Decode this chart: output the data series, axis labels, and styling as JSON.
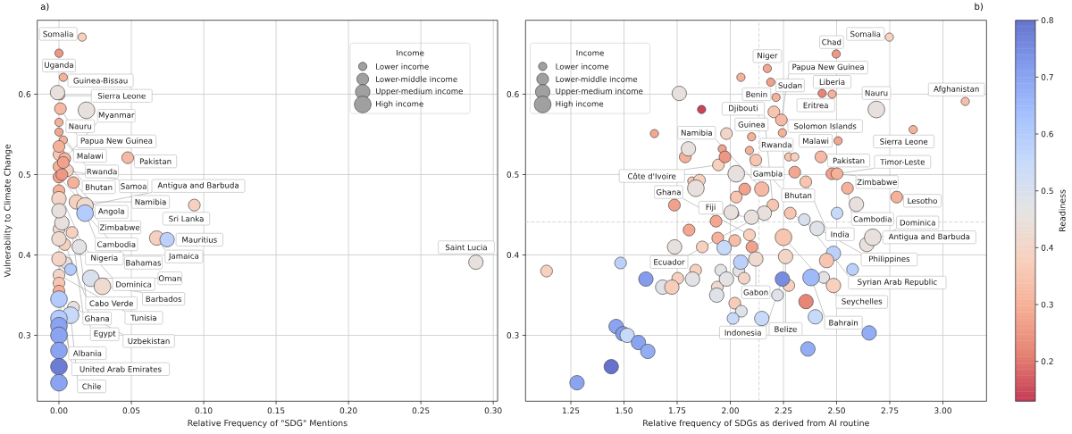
{
  "chart_data": [
    {
      "type": "bubble",
      "title": "a)",
      "xlabel": "Relative Frequency of \"SDG\" Mentions",
      "ylabel": "Vulnerability to Climate Change",
      "xlim": [
        -0.015,
        0.303
      ],
      "ylim": [
        0.218,
        0.692
      ],
      "xticks": [
        {
          "value": 0,
          "label": "0.00"
        },
        0.05,
        {
          "value": 0.1,
          "label": "0.10"
        },
        0.15,
        {
          "value": 0.2,
          "label": "0.20"
        },
        0.25,
        {
          "value": 0.3,
          "label": "0.30"
        }
      ],
      "yticks": [
        0.3,
        0.4,
        0.5,
        0.6
      ],
      "grid": true,
      "legend_title": "Income",
      "size_legend": [
        {
          "value": 1,
          "label": "Lower income"
        },
        {
          "value": 2,
          "label": "Lower-middle income"
        },
        {
          "value": 3,
          "label": "Upper-medium income"
        },
        {
          "value": 4,
          "label": "High income"
        }
      ],
      "series": [
        {
          "x": [
            0.016,
            0.0,
            0.003,
            0.001,
            0.0,
            0.003,
            0.0,
            0.001,
            0.0,
            0.004,
            0.0475,
            0.0,
            0.006,
            0.0,
            0.01,
            0.0,
            0.0935,
            0.0,
            0.009,
            0.0,
            0.01,
            0.0,
            0.003,
            0.002,
            0.004,
            0.005,
            0.008,
            0.0,
            0.0,
            0.012,
            0.002,
            0.0675,
            0.0747,
            0.014,
            0.0,
            0.288,
            -0.001,
            0.0,
            0.0,
            0.0,
            0.019,
            0.018,
            0.018,
            0.022,
            0.03,
            0.0,
            0.008,
            0.0,
            0.0,
            0.0,
            0.0,
            0.0,
            0.0
          ],
          "values": [
            0.671,
            0.651,
            0.621,
            0.598,
            0.553,
            0.543,
            0.565,
            0.582,
            0.525,
            0.52,
            0.521,
            0.51,
            0.505,
            0.497,
            0.49,
            0.48,
            0.462,
            0.432,
            0.428,
            0.375,
            0.335,
            0.535,
            0.515,
            0.5,
            0.413,
            0.39,
            0.382,
            0.365,
            0.355,
            0.466,
            0.44,
            0.421,
            0.419,
            0.41,
            0.395,
            0.391,
            0.602,
            0.47,
            0.455,
            0.42,
            0.58,
            0.461,
            0.452,
            0.371,
            0.361,
            0.345,
            0.325,
            0.321,
            0.312,
            0.3,
            0.281,
            0.261,
            0.241
          ],
          "colors": [
            "#f7d1bf",
            "#ed9784",
            "#f6b199",
            "#f6b199",
            "#f3a791",
            "#f6b199",
            "#f6b199",
            "#f7b9a3",
            "#f7c5b1",
            "#f6b199",
            "#f7b9a3",
            "#f6b199",
            "#f7d1bf",
            "#f1a18c",
            "#f6b199",
            "#f6b199",
            "#f7d1bf",
            "#efdad0",
            "#f7d1bf",
            "#f3d5c7",
            "#e8e0dd",
            "#f6b199",
            "#f1a18c",
            "#ed9784",
            "#f7d1bf",
            "#e8e0dd",
            "#b3cbfd",
            "#f7c5b1",
            "#f6b199",
            "#f7d1bf",
            "#e8e0dd",
            "#f7d1bf",
            "#bbd1fc",
            "#e3e3e5",
            "#f3d5c7",
            "#e8e0dd",
            "#e8e0dd",
            "#f3d5c7",
            "#e8e0dd",
            "#efdad0",
            "#e8e0dd",
            "#efdad0",
            "#b3cbfd",
            "#d8e0ed",
            "#efdad0",
            "#b3cbfd",
            "#c7dafa",
            "#b3cbfd",
            "#8ba4f2",
            "#8ba4f2",
            "#8ba4f2",
            "#6d7dd6",
            "#8ba4f2"
          ],
          "sizes": [
            1,
            1,
            1,
            1,
            1,
            1,
            1,
            2,
            2,
            2,
            2,
            2,
            2,
            2,
            2,
            2,
            2,
            2,
            2,
            2,
            2,
            2,
            2,
            2,
            2,
            2,
            2,
            2,
            2,
            3,
            3,
            3,
            3,
            3,
            3,
            3,
            3,
            3,
            3,
            3,
            4,
            4,
            4,
            4,
            4,
            4,
            4,
            4,
            4,
            4,
            4,
            4,
            4
          ]
        }
      ],
      "annotations": [
        {
          "text": "Somalia",
          "x": 0.016,
          "y": 0.671
        },
        {
          "text": "Uganda",
          "x": 0.0,
          "y": 0.651
        },
        {
          "text": "Guinea-Bissau",
          "x": 0.003,
          "y": 0.621
        },
        {
          "text": "Nauru",
          "x": 0.019,
          "y": 0.58
        },
        {
          "text": "Sierra Leone",
          "x": 0.001,
          "y": 0.598
        },
        {
          "text": "Papua New Guinea",
          "x": 0.001,
          "y": 0.582
        },
        {
          "text": "Malawi",
          "x": 0.0,
          "y": 0.553
        },
        {
          "text": "Rwanda",
          "x": 0.003,
          "y": 0.543
        },
        {
          "text": "Bhutan",
          "x": 0.0,
          "y": 0.525
        },
        {
          "text": "Myanmar",
          "x": 0.004,
          "y": 0.52
        },
        {
          "text": "Pakistan",
          "x": 0.0475,
          "y": 0.521
        },
        {
          "text": "Angola",
          "x": 0.0,
          "y": 0.51
        },
        {
          "text": "Samoa",
          "x": 0.006,
          "y": 0.505
        },
        {
          "text": "Zimbabwe",
          "x": 0.0,
          "y": 0.497
        },
        {
          "text": "Cambodia",
          "x": 0.01,
          "y": 0.49
        },
        {
          "text": "Nigeria",
          "x": 0.0,
          "y": 0.48
        },
        {
          "text": "Antigua and Barbuda",
          "x": 0.018,
          "y": 0.461
        },
        {
          "text": "Namibia",
          "x": 0.012,
          "y": 0.466
        },
        {
          "text": "Sri Lanka",
          "x": 0.0935,
          "y": 0.462
        },
        {
          "text": "Bahamas",
          "x": 0.018,
          "y": 0.452
        },
        {
          "text": "Dominica",
          "x": 0.002,
          "y": 0.44
        },
        {
          "text": "Cabo Verde",
          "x": 0.0,
          "y": 0.432
        },
        {
          "text": "Ghana",
          "x": 0.009,
          "y": 0.428
        },
        {
          "text": "Jamaica",
          "x": 0.0675,
          "y": 0.421
        },
        {
          "text": "Mauritius",
          "x": 0.0747,
          "y": 0.419
        },
        {
          "text": "Egypt",
          "x": 0.014,
          "y": 0.41
        },
        {
          "text": "Albania",
          "x": 0.0,
          "y": 0.395
        },
        {
          "text": "Tunisia",
          "x": 0.0,
          "y": 0.375
        },
        {
          "text": "Oman",
          "x": 0.022,
          "y": 0.371
        },
        {
          "text": "Barbados",
          "x": 0.03,
          "y": 0.361
        },
        {
          "text": "United Arab Emirates",
          "x": 0.0,
          "y": 0.345
        },
        {
          "text": "Uzbekistan",
          "x": 0.01,
          "y": 0.335
        },
        {
          "text": "Chile",
          "x": 0.008,
          "y": 0.325
        },
        {
          "text": "Saint Lucia",
          "x": 0.288,
          "y": 0.391
        }
      ]
    },
    {
      "type": "bubble",
      "title": "b)",
      "xlabel": "Relative frequency of SDGs as derived from AI routine",
      "xlim": [
        1.037,
        3.205
      ],
      "ylim": [
        0.218,
        0.692
      ],
      "xticks": [
        1.25,
        {
          "value": 1.5,
          "label": "1.50"
        },
        1.75,
        {
          "value": 2.0,
          "label": "2.00"
        },
        2.25,
        {
          "value": 2.5,
          "label": "2.50"
        },
        2.75,
        {
          "value": 3.0,
          "label": "3.00"
        }
      ],
      "yticks": [
        0.3,
        0.4,
        0.5,
        0.6
      ],
      "grid": true,
      "legend_title": "Income",
      "size_legend": [
        {
          "value": 1,
          "label": "Lower income"
        },
        {
          "value": 2,
          "label": "Lower-middle income"
        },
        {
          "value": 3,
          "label": "Upper-medium income"
        },
        {
          "value": 4,
          "label": "High income"
        }
      ],
      "clim": [
        0.13,
        0.8
      ],
      "cticks": [
        0.2,
        0.3,
        0.4,
        0.5,
        0.6,
        0.7,
        0.8
      ],
      "clabel": "Readiness",
      "ref_lines": [
        {
          "axis": "y",
          "value": 0.441,
          "color": "#cccccc",
          "line_style": "dashed"
        },
        {
          "axis": "x",
          "value": 2.135,
          "color": "#cccccc",
          "line_style": "dashed"
        }
      ],
      "series": [
        {
          "x": [
            2.748,
            2.498,
            2.174,
            2.19,
            2.432,
            2.479,
            2.215,
            2.507,
            3.105,
            2.86,
            2.1,
            2.245,
            2.09,
            2.05,
            1.865,
            1.643,
            1.962,
            1.819,
            2.021,
            2.275,
            2.303,
            2.205,
            2.24,
            2.426,
            2.12,
            2.478,
            1.944,
            2.502,
            2.355,
            2.551,
            2.783,
            2.2,
            2.282,
            2.348,
            2.09,
            1.982,
            1.788,
            1.975,
            1.855,
            2.068,
            2.028,
            1.737,
            1.933,
            1.806,
            1.941,
            2.021,
            1.868,
            2.102,
            1.136,
            1.484,
            1.753,
            1.837,
            1.955,
            1.939,
            2.04,
            2.065,
            2.021,
            2.052,
            2.013,
            2.222,
            2.303,
            2.502,
            2.575,
            2.439,
            2.275,
            2.148,
            2.16,
            2.1,
            2.642,
            2.12,
            2.26,
            2.245,
            1.76,
            1.803,
            2.004,
            1.738,
            1.971,
            1.603,
            1.682,
            1.725,
            1.822,
            1.982,
            1.936,
            2.049,
            2.148,
            1.463,
            1.495,
            1.515,
            1.568,
            1.612,
            1.44,
            1.279,
            2.593,
            2.408,
            2.485,
            2.453,
            2.485,
            2.356,
            2.4,
            2.653,
            2.365,
            2.687,
            2.67,
            2.25,
            2.38,
            2.028,
            1.838
          ],
          "values": [
            0.671,
            0.65,
            0.632,
            0.615,
            0.601,
            0.6,
            0.596,
            0.542,
            0.591,
            0.556,
            0.547,
            0.552,
            0.53,
            0.621,
            0.581,
            0.551,
            0.532,
            0.492,
            0.451,
            0.522,
            0.522,
            0.578,
            0.568,
            0.522,
            0.518,
            0.501,
            0.512,
            0.501,
            0.491,
            0.483,
            0.472,
            0.462,
            0.452,
            0.444,
            0.425,
            0.551,
            0.522,
            0.522,
            0.493,
            0.482,
            0.472,
            0.462,
            0.442,
            0.431,
            0.421,
            0.418,
            0.41,
            0.41,
            0.38,
            0.39,
            0.371,
            0.381,
            0.381,
            0.36,
            0.38,
            0.371,
            0.34,
            0.33,
            0.321,
            0.35,
            0.503,
            0.452,
            0.382,
            0.372,
            0.362,
            0.482,
            0.452,
            0.447,
            0.413,
            0.395,
            0.398,
            0.37,
            0.601,
            0.532,
            0.453,
            0.41,
            0.409,
            0.37,
            0.36,
            0.36,
            0.37,
            0.37,
            0.35,
            0.391,
            0.321,
            0.311,
            0.302,
            0.3,
            0.291,
            0.28,
            0.261,
            0.241,
            0.463,
            0.433,
            0.402,
            0.393,
            0.362,
            0.342,
            0.323,
            0.303,
            0.283,
            0.581,
            0.422,
            0.422,
            0.372,
            0.501,
            0.483
          ],
          "cvalues": [
            0.38,
            0.25,
            0.28,
            0.27,
            0.22,
            0.3,
            0.3,
            0.28,
            0.33,
            0.3,
            0.3,
            0.3,
            0.3,
            0.3,
            0.14,
            0.28,
            0.27,
            0.35,
            0.27,
            0.35,
            0.38,
            0.35,
            0.32,
            0.32,
            0.35,
            0.27,
            0.38,
            0.3,
            0.35,
            0.3,
            0.3,
            0.35,
            0.35,
            0.5,
            0.38,
            0.4,
            0.3,
            0.25,
            0.38,
            0.27,
            0.35,
            0.27,
            0.28,
            0.28,
            0.3,
            0.33,
            0.38,
            0.27,
            0.38,
            0.58,
            0.38,
            0.38,
            0.47,
            0.42,
            0.47,
            0.4,
            0.37,
            0.48,
            0.55,
            0.48,
            0.28,
            0.55,
            0.58,
            0.47,
            0.38,
            0.32,
            0.45,
            0.45,
            0.45,
            0.42,
            0.4,
            0.75,
            0.45,
            0.45,
            0.45,
            0.45,
            0.55,
            0.72,
            0.48,
            0.37,
            0.47,
            0.47,
            0.48,
            0.58,
            0.55,
            0.7,
            0.72,
            0.55,
            0.7,
            0.68,
            0.8,
            0.7,
            0.45,
            0.48,
            0.58,
            0.35,
            0.38,
            0.22,
            0.55,
            0.68,
            0.68,
            0.45,
            0.45,
            0.35,
            0.65,
            0.45,
            0.45
          ],
          "sizes": [
            1,
            1,
            1,
            1,
            1,
            1,
            1,
            1,
            1,
            1,
            1,
            1,
            1,
            1,
            1,
            1,
            1,
            1,
            1,
            1,
            1,
            2,
            2,
            2,
            2,
            2,
            2,
            2,
            2,
            2,
            2,
            2,
            2,
            2,
            2,
            2,
            2,
            2,
            2,
            2,
            2,
            2,
            2,
            2,
            2,
            2,
            2,
            2,
            2,
            2,
            2,
            2,
            2,
            2,
            2,
            2,
            2,
            2,
            2,
            2,
            2,
            2,
            2,
            2,
            2,
            3,
            3,
            3,
            3,
            3,
            3,
            3,
            3,
            3,
            3,
            3,
            3,
            3,
            3,
            3,
            3,
            3,
            3,
            3,
            3,
            3,
            3,
            3,
            3,
            3,
            3,
            3,
            3,
            3,
            3,
            3,
            3,
            3,
            3,
            3,
            3,
            4,
            4,
            4,
            4,
            4,
            4
          ]
        }
      ],
      "annotations": [
        {
          "text": "Somalia",
          "x": 2.748,
          "y": 0.671
        },
        {
          "text": "Chad",
          "x": 2.498,
          "y": 0.65
        },
        {
          "text": "Niger",
          "x": 2.174,
          "y": 0.632
        },
        {
          "text": "Sudan",
          "x": 2.19,
          "y": 0.615
        },
        {
          "text": "Eritrea",
          "x": 2.432,
          "y": 0.601
        },
        {
          "text": "Liberia",
          "x": 2.479,
          "y": 0.6
        },
        {
          "text": "Benin",
          "x": 2.215,
          "y": 0.596
        },
        {
          "text": "Solomon Islands",
          "x": 2.205,
          "y": 0.578
        },
        {
          "text": "Papua New Guinea",
          "x": 2.24,
          "y": 0.568
        },
        {
          "text": "Pakistan",
          "x": 2.426,
          "y": 0.522
        },
        {
          "text": "Malawi",
          "x": 2.507,
          "y": 0.542
        },
        {
          "text": "Nauru",
          "x": 2.687,
          "y": 0.581
        },
        {
          "text": "Afghanistan",
          "x": 3.105,
          "y": 0.591
        },
        {
          "text": "Sierra Leone",
          "x": 2.86,
          "y": 0.556
        },
        {
          "text": "Guinea",
          "x": 2.1,
          "y": 0.547
        },
        {
          "text": "Rwanda",
          "x": 2.245,
          "y": 0.552
        },
        {
          "text": "Gambia",
          "x": 2.09,
          "y": 0.53
        },
        {
          "text": "Bhutan",
          "x": 2.12,
          "y": 0.518
        },
        {
          "text": "Zimbabwe",
          "x": 2.478,
          "y": 0.501
        },
        {
          "text": "Côte d'Ivoire",
          "x": 1.944,
          "y": 0.512
        },
        {
          "text": "Timor-Leste",
          "x": 2.502,
          "y": 0.501
        },
        {
          "text": "India",
          "x": 2.355,
          "y": 0.491
        },
        {
          "text": "Namibia",
          "x": 2.148,
          "y": 0.482
        },
        {
          "text": "Cambodia",
          "x": 2.551,
          "y": 0.483
        },
        {
          "text": "Lesotho",
          "x": 2.783,
          "y": 0.472
        },
        {
          "text": "Djibouti",
          "x": 2.2,
          "y": 0.462
        },
        {
          "text": "Ecuador",
          "x": 2.16,
          "y": 0.452
        },
        {
          "text": "Philippines",
          "x": 2.282,
          "y": 0.452
        },
        {
          "text": "Fiji",
          "x": 2.1,
          "y": 0.447
        },
        {
          "text": "Syrian Arab Republic",
          "x": 2.348,
          "y": 0.444
        },
        {
          "text": "Antigua and Barbuda",
          "x": 2.67,
          "y": 0.422
        },
        {
          "text": "Ghana",
          "x": 2.09,
          "y": 0.425
        },
        {
          "text": "Seychelles",
          "x": 2.25,
          "y": 0.422
        },
        {
          "text": "Dominica",
          "x": 2.642,
          "y": 0.413
        },
        {
          "text": "Gabon",
          "x": 2.12,
          "y": 0.395
        },
        {
          "text": "Belize",
          "x": 2.26,
          "y": 0.398
        },
        {
          "text": "Indonesia",
          "x": 2.245,
          "y": 0.37
        },
        {
          "text": "Bahrain",
          "x": 2.38,
          "y": 0.372
        }
      ]
    }
  ]
}
